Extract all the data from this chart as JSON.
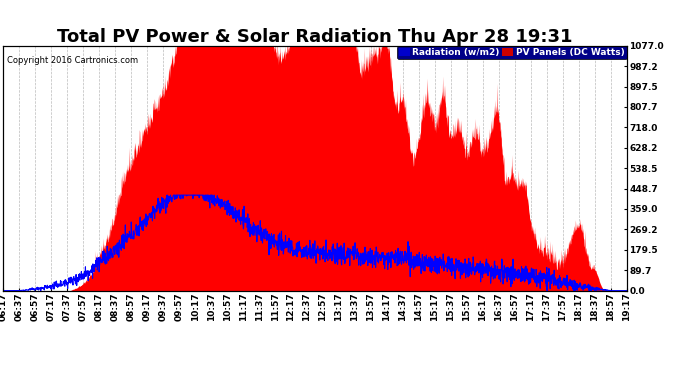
{
  "title": "Total PV Power & Solar Radiation Thu Apr 28 19:31",
  "copyright": "Copyright 2016 Cartronics.com",
  "legend_radiation": "Radiation (w/m2)",
  "legend_pv": "PV Panels (DC Watts)",
  "ylabel_right_ticks": [
    0.0,
    89.7,
    179.5,
    269.2,
    359.0,
    448.7,
    538.5,
    628.2,
    718.0,
    807.7,
    897.5,
    987.2,
    1077.0
  ],
  "x_tick_labels": [
    "06:17",
    "06:37",
    "06:57",
    "07:17",
    "07:37",
    "07:57",
    "08:17",
    "08:37",
    "08:57",
    "09:17",
    "09:37",
    "09:57",
    "10:17",
    "10:37",
    "10:57",
    "11:17",
    "11:37",
    "11:57",
    "12:17",
    "12:37",
    "12:57",
    "13:17",
    "13:37",
    "13:57",
    "14:17",
    "14:37",
    "14:57",
    "15:17",
    "15:37",
    "15:57",
    "16:17",
    "16:37",
    "16:57",
    "17:17",
    "17:37",
    "17:57",
    "18:17",
    "18:37",
    "18:57",
    "19:17"
  ],
  "bg_color": "#ffffff",
  "plot_bg_color": "#ffffff",
  "grid_color": "#bbbbbb",
  "pv_fill_color": "#ff0000",
  "radiation_line_color": "#0000ff",
  "title_fontsize": 13,
  "tick_fontsize": 6.5,
  "legend_radiation_bg": "#0000cc",
  "legend_pv_bg": "#cc0000",
  "legend_text_color": "#ffffff"
}
